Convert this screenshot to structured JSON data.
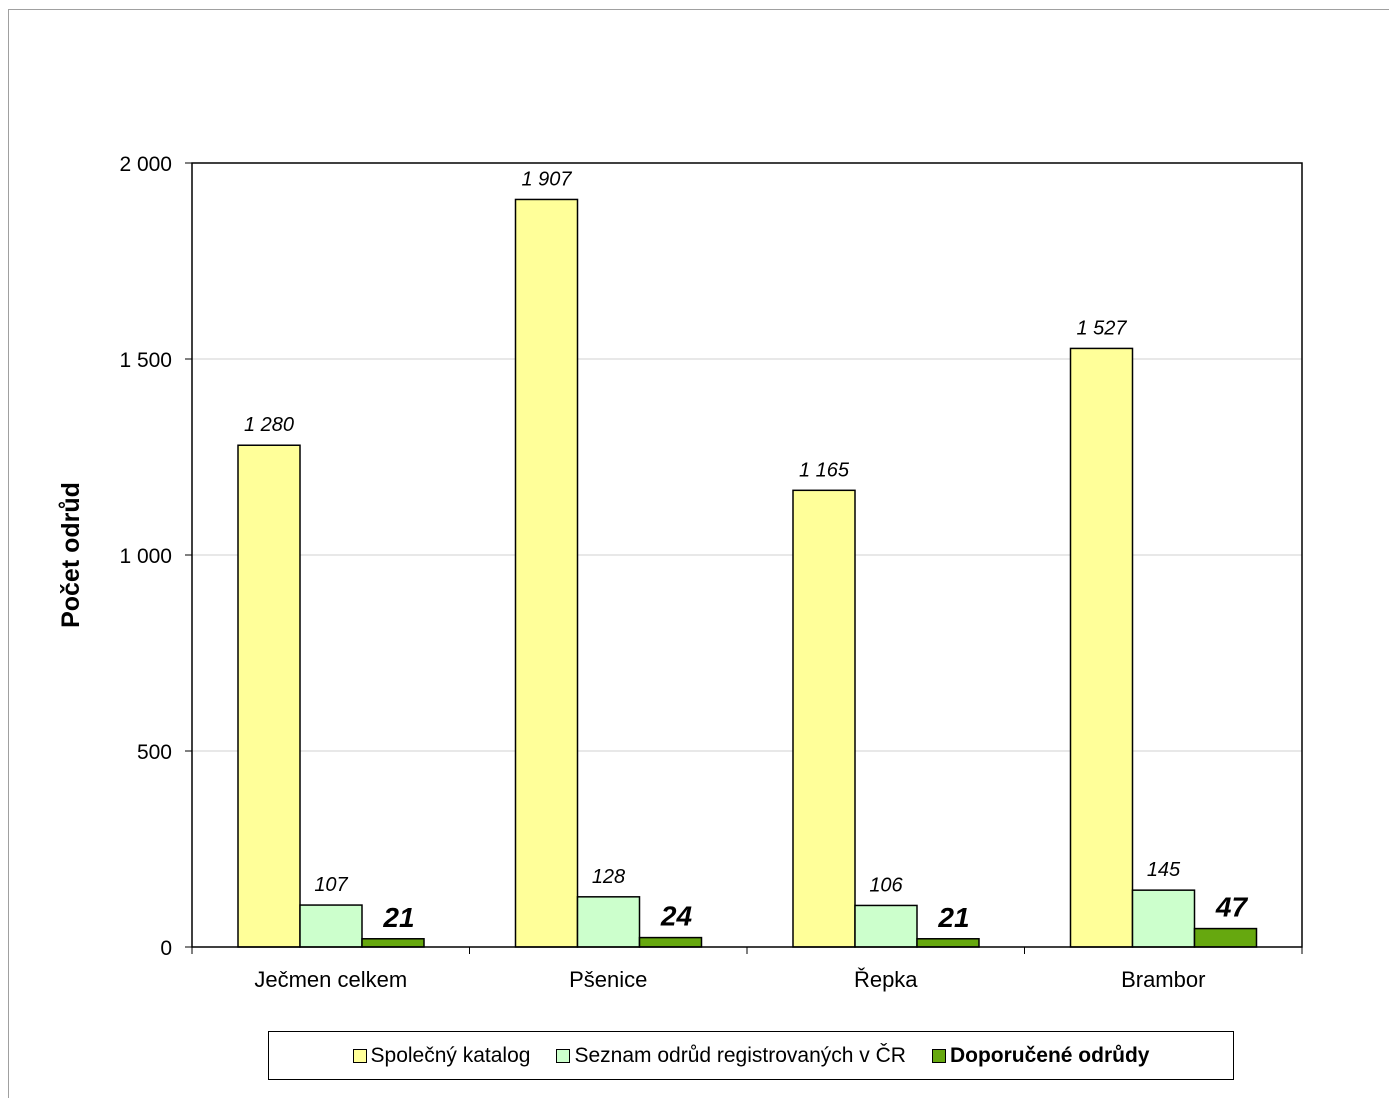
{
  "chart_data": {
    "type": "bar",
    "title": "",
    "xlabel": "",
    "ylabel": "Počet odrůd",
    "ylim": [
      0,
      2000
    ],
    "yticks": [
      0,
      500,
      1000,
      1500,
      2000
    ],
    "ytick_labels": [
      "0",
      "500",
      "1 000",
      "1 500",
      "2 000"
    ],
    "grid": true,
    "legend_position": "bottom",
    "categories": [
      "Ječmen celkem",
      "Pšenice",
      "Řepka",
      "Brambor"
    ],
    "series": [
      {
        "name": "Společný katalog",
        "color": "#ffff99",
        "values": [
          1280,
          1907,
          1165,
          1527
        ],
        "labels": [
          "1 280",
          "1 907",
          "1 165",
          "1 527"
        ],
        "label_style": "italic"
      },
      {
        "name": "Seznam odrůd registrovaných v ČR",
        "color": "#ccffcc",
        "values": [
          107,
          128,
          106,
          145
        ],
        "labels": [
          "107",
          "128",
          "106",
          "145"
        ],
        "label_style": "italic"
      },
      {
        "name": "Doporučené odrůdy",
        "color": "#66a80f",
        "values": [
          21,
          24,
          21,
          47
        ],
        "labels": [
          "21",
          "24",
          "21",
          "47"
        ],
        "label_style": "bold-italic"
      }
    ]
  }
}
